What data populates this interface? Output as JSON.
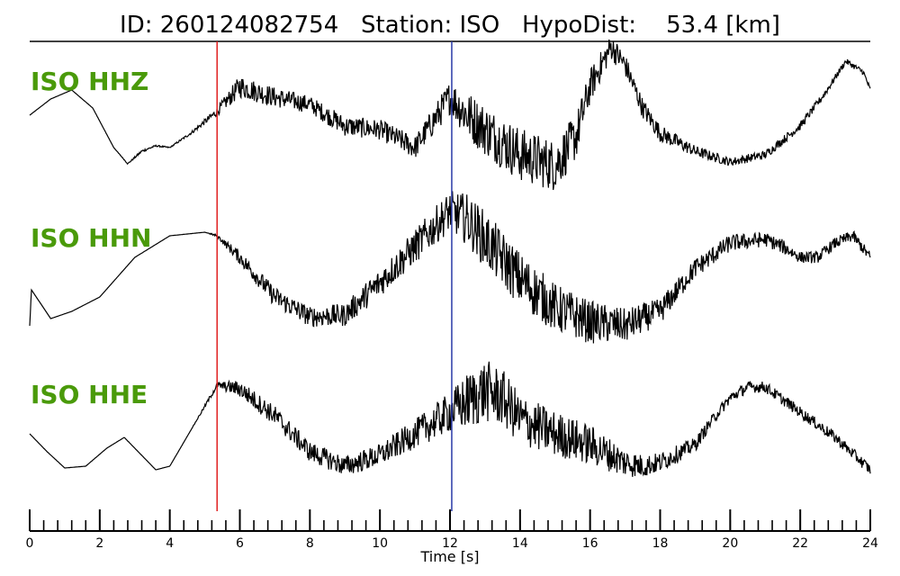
{
  "title": "ID: 260124082754   Station: ISO   HypoDist:    53.4 [km]",
  "colors": {
    "label": "#4a9a0a",
    "p_pick": "#e02020",
    "s_pick": "#2a3aa8",
    "trace": "#000000"
  },
  "chart_data": {
    "type": "line",
    "xlabel": "Time [s]",
    "xlim": [
      0,
      24
    ],
    "x_ticks": [
      0,
      2,
      4,
      6,
      8,
      10,
      12,
      14,
      16,
      18,
      20,
      22,
      24
    ],
    "x_tick_labels": [
      "0",
      "2",
      "4",
      "6",
      "8",
      "10",
      "12",
      "14",
      "16",
      "18",
      "20",
      "22",
      "24"
    ],
    "minor_tick_step": 0.4,
    "picks": [
      {
        "phase": "P",
        "time": 5.35
      },
      {
        "phase": "S",
        "time": 12.05
      }
    ],
    "series": [
      {
        "name": "ISO HHZ",
        "t": [
          0,
          0.6,
          1.2,
          1.8,
          2.4,
          2.8,
          3.2,
          3.6,
          4.0,
          4.6,
          5.35,
          6.0,
          7.0,
          8.0,
          9.0,
          10.0,
          11.0,
          12.0,
          12.5,
          13.0,
          14.0,
          15.0,
          15.6,
          16.0,
          16.6,
          17.0,
          17.5,
          18.0,
          19.0,
          20.0,
          21.0,
          22.0,
          22.7,
          23.3,
          23.8,
          24.0
        ],
        "level": [
          0.0,
          0.45,
          0.7,
          0.2,
          -0.9,
          -1.35,
          -1.0,
          -0.85,
          -0.9,
          -0.5,
          0.1,
          0.8,
          0.5,
          0.3,
          -0.3,
          -0.4,
          -0.9,
          0.5,
          0.0,
          -0.4,
          -1.1,
          -1.4,
          -0.6,
          0.8,
          1.9,
          1.4,
          0.2,
          -0.5,
          -1.0,
          -1.3,
          -1.1,
          -0.3,
          0.6,
          1.5,
          1.2,
          0.7
        ],
        "noise": [
          0,
          0,
          0,
          0,
          0,
          0.02,
          0.05,
          0.03,
          0.02,
          0.05,
          0.15,
          0.4,
          0.35,
          0.3,
          0.35,
          0.35,
          0.4,
          0.6,
          0.85,
          0.9,
          0.95,
          0.9,
          0.8,
          0.6,
          0.45,
          0.4,
          0.35,
          0.3,
          0.2,
          0.15,
          0.15,
          0.15,
          0.12,
          0.1,
          0.1,
          0.1
        ]
      },
      {
        "name": "ISO HHN",
        "t": [
          0,
          0.05,
          0.6,
          1.2,
          2.0,
          3.0,
          4.0,
          5.0,
          5.35,
          6.0,
          7.0,
          8.0,
          9.0,
          10.0,
          11.0,
          12.0,
          12.5,
          13.0,
          14.0,
          15.0,
          16.0,
          17.0,
          18.0,
          19.0,
          20.0,
          21.0,
          21.5,
          22.0,
          22.5,
          23.0,
          23.5,
          24.0
        ],
        "level": [
          -1.6,
          -0.6,
          -1.4,
          -1.2,
          -0.8,
          0.3,
          0.9,
          1.0,
          0.9,
          0.3,
          -0.8,
          -1.35,
          -1.3,
          -0.4,
          0.6,
          1.6,
          1.35,
          0.8,
          -0.3,
          -1.1,
          -1.5,
          -1.6,
          -1.2,
          0.0,
          0.7,
          0.8,
          0.6,
          0.3,
          0.3,
          0.7,
          0.9,
          0.3
        ],
        "noise": [
          0,
          0,
          0,
          0,
          0,
          0,
          0,
          0,
          0.05,
          0.25,
          0.35,
          0.35,
          0.4,
          0.5,
          0.6,
          0.7,
          0.9,
          1.0,
          0.95,
          0.85,
          0.75,
          0.6,
          0.45,
          0.35,
          0.3,
          0.25,
          0.25,
          0.2,
          0.2,
          0.2,
          0.2,
          0.2
        ]
      },
      {
        "name": "ISO HHE",
        "t": [
          0,
          0.5,
          1.0,
          1.6,
          2.2,
          2.7,
          3.2,
          3.6,
          4.0,
          4.6,
          5.35,
          6.0,
          7.0,
          8.0,
          9.0,
          10.0,
          11.0,
          12.0,
          12.5,
          13.0,
          13.5,
          14.0,
          15.0,
          16.0,
          17.0,
          17.5,
          18.0,
          19.0,
          19.5,
          20.0,
          20.5,
          21.0,
          22.0,
          23.0,
          24.0
        ],
        "level": [
          -0.3,
          -0.8,
          -1.25,
          -1.2,
          -0.7,
          -0.4,
          -0.9,
          -1.3,
          -1.2,
          -0.2,
          1.05,
          0.95,
          0.2,
          -0.8,
          -1.2,
          -0.9,
          -0.3,
          0.3,
          0.6,
          0.9,
          0.7,
          0.1,
          -0.3,
          -0.6,
          -1.1,
          -1.2,
          -1.1,
          -0.6,
          0.1,
          0.7,
          1.0,
          1.0,
          0.3,
          -0.4,
          -1.3
        ],
        "noise": [
          0,
          0,
          0,
          0,
          0,
          0,
          0,
          0,
          0,
          0,
          0.1,
          0.3,
          0.35,
          0.35,
          0.35,
          0.4,
          0.5,
          0.7,
          1.0,
          1.1,
          1.0,
          0.9,
          0.8,
          0.7,
          0.5,
          0.4,
          0.35,
          0.25,
          0.2,
          0.2,
          0.2,
          0.2,
          0.2,
          0.2,
          0.2
        ]
      }
    ]
  }
}
